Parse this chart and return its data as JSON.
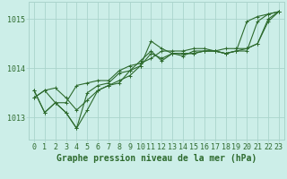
{
  "background_color": "#cceee8",
  "grid_color": "#aad4cc",
  "line_color": "#2d6a2d",
  "marker_color": "#2d6a2d",
  "xlabel": "Graphe pression niveau de la mer (hPa)",
  "xlabel_fontsize": 7,
  "tick_fontsize": 6,
  "ytick_labels": [
    1013,
    1014,
    1015
  ],
  "ylim": [
    1012.55,
    1015.35
  ],
  "xlim": [
    -0.5,
    23.5
  ],
  "xtick_labels": [
    0,
    1,
    2,
    3,
    4,
    5,
    6,
    7,
    8,
    9,
    10,
    11,
    12,
    13,
    14,
    15,
    16,
    17,
    18,
    19,
    20,
    21,
    22,
    23
  ],
  "series": [
    [
      1013.55,
      1013.1,
      1013.3,
      1013.1,
      1012.78,
      1013.15,
      1013.55,
      1013.65,
      1013.75,
      1013.85,
      1014.05,
      1014.55,
      1014.4,
      1014.3,
      1014.3,
      1014.3,
      1014.35,
      1014.35,
      1014.3,
      1014.35,
      1014.35,
      1014.95,
      1015.1,
      1015.15
    ],
    [
      1013.55,
      1013.1,
      1013.3,
      1013.1,
      1012.78,
      1013.5,
      1013.65,
      1013.7,
      1013.9,
      1013.95,
      1014.15,
      1014.35,
      1014.15,
      1014.3,
      1014.3,
      1014.3,
      1014.35,
      1014.35,
      1014.3,
      1014.35,
      1014.95,
      1015.05,
      1015.1,
      1015.15
    ],
    [
      1013.4,
      1013.55,
      1013.3,
      1013.3,
      1013.65,
      1013.7,
      1013.75,
      1013.75,
      1013.95,
      1014.05,
      1014.1,
      1014.2,
      1014.35,
      1014.35,
      1014.35,
      1014.4,
      1014.4,
      1014.35,
      1014.4,
      1014.4,
      1014.4,
      1014.5,
      1014.95,
      1015.15
    ],
    [
      1013.4,
      1013.55,
      1013.6,
      1013.4,
      1013.15,
      1013.35,
      1013.55,
      1013.65,
      1013.7,
      1013.95,
      1014.05,
      1014.3,
      1014.2,
      1014.3,
      1014.25,
      1014.35,
      1014.35,
      1014.35,
      1014.3,
      1014.35,
      1014.4,
      1014.5,
      1015.0,
      1015.15
    ]
  ]
}
